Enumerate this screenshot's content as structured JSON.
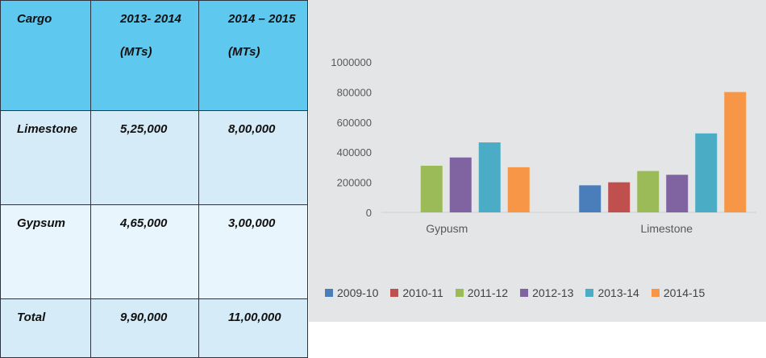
{
  "table": {
    "headers": [
      {
        "line1": "Cargo",
        "line2": ""
      },
      {
        "line1": "2013- 2014",
        "line2": "(MTs)"
      },
      {
        "line1": "2014 – 2015",
        "line2": "(MTs)"
      }
    ],
    "rows": [
      [
        "Limestone",
        "5,25,000",
        "8,00,000"
      ],
      [
        "Gypsum",
        "4,65,000",
        "3,00,000"
      ],
      [
        "Total",
        "9,90,000",
        "11,00,000"
      ]
    ]
  },
  "chart_data": {
    "type": "bar",
    "categories": [
      "Gypusm",
      "Limestone"
    ],
    "series": [
      {
        "name": "2009-10",
        "color": "#4a7ebb",
        "values": [
          null,
          180000
        ]
      },
      {
        "name": "2010-11",
        "color": "#c0504d",
        "values": [
          null,
          200000
        ]
      },
      {
        "name": "2011-12",
        "color": "#9bbb59",
        "values": [
          310000,
          275000
        ]
      },
      {
        "name": "2012-13",
        "color": "#8064a2",
        "values": [
          365000,
          250000
        ]
      },
      {
        "name": "2013-14",
        "color": "#4bacc6",
        "values": [
          465000,
          525000
        ]
      },
      {
        "name": "2014-15",
        "color": "#f79646",
        "values": [
          300000,
          800000
        ]
      }
    ],
    "yticks": [
      "0",
      "200000",
      "400000",
      "600000",
      "800000",
      "1000000"
    ],
    "ylim": [
      0,
      1000000
    ],
    "grid": false,
    "legend_position": "bottom"
  }
}
